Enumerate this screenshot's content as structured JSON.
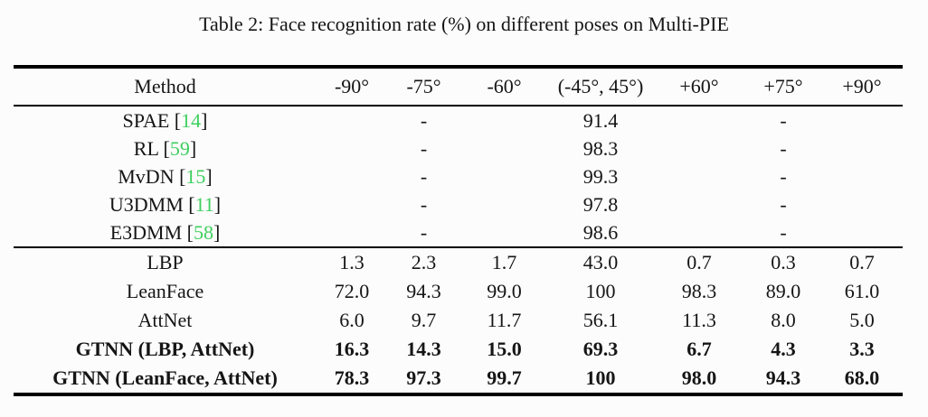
{
  "caption": "Table 2: Face recognition rate (%) on different poses on Multi-PIE",
  "colors": {
    "citation_green": "#3ecf5e",
    "text": "#151515",
    "rule": "#000000",
    "background": "#fcfcfc"
  },
  "table": {
    "headers": [
      "Method",
      "-90°",
      "-75°",
      "-60°",
      "(-45°, 45°)",
      "+60°",
      "+75°",
      "+90°"
    ],
    "group1": [
      {
        "pre": "SPAE [",
        "cite": "14",
        "post": "]",
        "cells": [
          "",
          "-",
          "",
          "91.4",
          "",
          "-",
          ""
        ]
      },
      {
        "pre": "RL [",
        "cite": "59",
        "post": "]",
        "cells": [
          "",
          "-",
          "",
          "98.3",
          "",
          "-",
          ""
        ]
      },
      {
        "pre": "MvDN [",
        "cite": "15",
        "post": "]",
        "cells": [
          "",
          "-",
          "",
          "99.3",
          "",
          "-",
          ""
        ]
      },
      {
        "pre": "U3DMM [",
        "cite": "11",
        "post": "]",
        "cells": [
          "",
          "-",
          "",
          "97.8",
          "",
          "-",
          ""
        ]
      },
      {
        "pre": "E3DMM [",
        "cite": "58",
        "post": "]",
        "cells": [
          "",
          "-",
          "",
          "98.6",
          "",
          "-",
          ""
        ]
      }
    ],
    "group2": [
      {
        "pre": "LBP",
        "cite": "",
        "post": "",
        "cells": [
          "1.3",
          "2.3",
          "1.7",
          "43.0",
          "0.7",
          "0.3",
          "0.7"
        ]
      },
      {
        "pre": "LeanFace",
        "cite": "",
        "post": "",
        "cells": [
          "72.0",
          "94.3",
          "99.0",
          "100",
          "98.3",
          "89.0",
          "61.0"
        ]
      },
      {
        "pre": "AttNet",
        "cite": "",
        "post": "",
        "cells": [
          "6.0",
          "9.7",
          "11.7",
          "56.1",
          "11.3",
          "8.0",
          "5.0"
        ]
      },
      {
        "pre": "GTNN (LBP, AttNet)",
        "cite": "",
        "post": "",
        "cells": [
          "16.3",
          "14.3",
          "15.0",
          "69.3",
          "6.7",
          "4.3",
          "3.3"
        ]
      },
      {
        "pre": "GTNN (LeanFace, AttNet)",
        "cite": "",
        "post": "",
        "cells": [
          "78.3",
          "97.3",
          "99.7",
          "100",
          "98.0",
          "94.3",
          "68.0"
        ]
      }
    ]
  }
}
